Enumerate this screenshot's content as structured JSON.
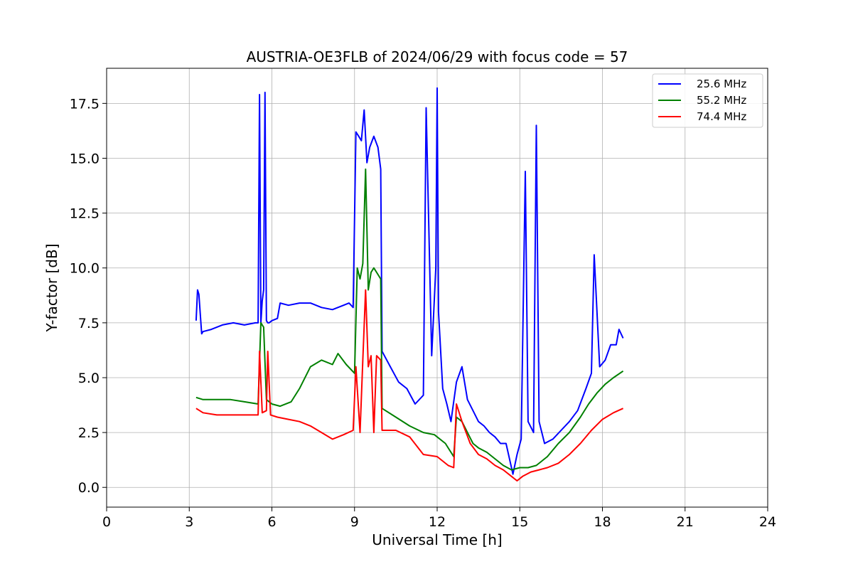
{
  "chart_data": {
    "type": "line",
    "title": "AUSTRIA-OE3FLB of 2024/06/29 with focus code = 57",
    "xlabel": "Universal Time [h]",
    "ylabel": "Y-factor [dB]",
    "xlim": [
      0,
      24
    ],
    "ylim": [
      -0.9,
      19.1
    ],
    "xticks": [
      0,
      3,
      6,
      9,
      12,
      15,
      18,
      21,
      24
    ],
    "yticks": [
      0.0,
      2.5,
      5.0,
      7.5,
      10.0,
      12.5,
      15.0,
      17.5
    ],
    "ytick_labels": [
      "0.0",
      "2.5",
      "5.0",
      "7.5",
      "10.0",
      "12.5",
      "15.0",
      "17.5"
    ],
    "grid": true,
    "legend_position": "top-right",
    "series": [
      {
        "name": "25.6 MHz",
        "color": "#0000ff",
        "x": [
          3.25,
          3.3,
          3.35,
          3.45,
          3.5,
          3.8,
          4.2,
          4.6,
          5.0,
          5.4,
          5.5,
          5.55,
          5.6,
          5.65,
          5.7,
          5.75,
          5.8,
          5.85,
          5.9,
          6.0,
          6.2,
          6.3,
          6.6,
          7.0,
          7.4,
          7.8,
          8.2,
          8.6,
          8.8,
          8.95,
          9.05,
          9.15,
          9.25,
          9.35,
          9.45,
          9.55,
          9.7,
          9.85,
          9.95,
          10.0,
          10.3,
          10.6,
          10.9,
          11.2,
          11.5,
          11.6,
          11.8,
          11.95,
          12.0,
          12.05,
          12.2,
          12.35,
          12.5,
          12.7,
          12.9,
          13.1,
          13.3,
          13.5,
          13.7,
          13.9,
          14.1,
          14.3,
          14.5,
          14.75,
          14.9,
          15.05,
          15.2,
          15.3,
          15.5,
          15.6,
          15.7,
          15.9,
          16.2,
          16.5,
          16.8,
          17.1,
          17.4,
          17.6,
          17.7,
          17.9,
          18.1,
          18.3,
          18.5,
          18.6,
          18.75
        ],
        "y": [
          7.6,
          9.0,
          8.8,
          7.0,
          7.1,
          7.2,
          7.4,
          7.5,
          7.4,
          7.5,
          7.5,
          17.9,
          7.5,
          8.5,
          9.0,
          18.0,
          7.6,
          7.5,
          7.5,
          7.6,
          7.7,
          8.4,
          8.3,
          8.4,
          8.4,
          8.2,
          8.1,
          8.3,
          8.4,
          8.2,
          16.2,
          16.0,
          15.8,
          17.2,
          14.8,
          15.5,
          16.0,
          15.5,
          14.5,
          6.2,
          5.5,
          4.8,
          4.5,
          3.8,
          4.2,
          17.3,
          6.0,
          10.0,
          18.2,
          8.0,
          4.5,
          3.8,
          3.0,
          4.8,
          5.5,
          4.0,
          3.5,
          3.0,
          2.8,
          2.5,
          2.3,
          2.0,
          2.0,
          0.6,
          1.5,
          2.2,
          14.4,
          3.0,
          2.5,
          16.5,
          3.0,
          2.0,
          2.2,
          2.6,
          3.0,
          3.5,
          4.5,
          5.2,
          10.6,
          5.5,
          5.8,
          6.5,
          6.5,
          7.2,
          6.8
        ]
      },
      {
        "name": "55.2 MHz",
        "color": "#008000",
        "x": [
          3.25,
          3.5,
          4.0,
          4.5,
          5.0,
          5.5,
          5.6,
          5.7,
          5.8,
          6.0,
          6.3,
          6.7,
          7.0,
          7.4,
          7.8,
          8.2,
          8.4,
          8.7,
          9.0,
          9.1,
          9.2,
          9.3,
          9.4,
          9.5,
          9.6,
          9.7,
          9.8,
          9.95,
          10.0,
          10.5,
          11.0,
          11.5,
          11.9,
          12.3,
          12.5,
          12.6,
          12.7,
          12.9,
          13.1,
          13.3,
          13.5,
          13.8,
          14.1,
          14.4,
          14.7,
          15.0,
          15.3,
          15.6,
          16.0,
          16.4,
          16.8,
          17.2,
          17.5,
          17.8,
          18.1,
          18.4,
          18.75
        ],
        "y": [
          4.1,
          4.0,
          4.0,
          4.0,
          3.9,
          3.8,
          7.5,
          7.3,
          4.0,
          3.8,
          3.7,
          3.9,
          4.5,
          5.5,
          5.8,
          5.6,
          6.1,
          5.6,
          5.2,
          10.0,
          9.5,
          10.2,
          14.5,
          9.0,
          9.8,
          10.0,
          9.8,
          9.5,
          3.6,
          3.2,
          2.8,
          2.5,
          2.4,
          2.0,
          1.6,
          1.4,
          3.2,
          3.0,
          2.5,
          2.0,
          1.8,
          1.6,
          1.3,
          1.0,
          0.8,
          0.9,
          0.9,
          1.0,
          1.4,
          2.0,
          2.5,
          3.2,
          3.8,
          4.3,
          4.7,
          5.0,
          5.3
        ]
      },
      {
        "name": "74.4 MHz",
        "color": "#ff0000",
        "x": [
          3.25,
          3.5,
          4.0,
          4.5,
          5.0,
          5.5,
          5.55,
          5.65,
          5.8,
          5.85,
          5.95,
          6.2,
          6.6,
          7.0,
          7.4,
          7.8,
          8.2,
          8.6,
          8.95,
          9.05,
          9.2,
          9.3,
          9.4,
          9.5,
          9.6,
          9.7,
          9.8,
          9.95,
          10.0,
          10.5,
          11.0,
          11.5,
          12.0,
          12.4,
          12.6,
          12.7,
          12.9,
          13.2,
          13.5,
          13.8,
          14.1,
          14.4,
          14.7,
          14.9,
          15.1,
          15.4,
          15.7,
          16.0,
          16.4,
          16.8,
          17.2,
          17.6,
          18.0,
          18.4,
          18.75
        ],
        "y": [
          3.6,
          3.4,
          3.3,
          3.3,
          3.3,
          3.3,
          6.2,
          3.4,
          3.5,
          6.2,
          3.3,
          3.2,
          3.1,
          3.0,
          2.8,
          2.5,
          2.2,
          2.4,
          2.6,
          5.5,
          2.5,
          5.8,
          9.0,
          5.5,
          6.0,
          2.5,
          6.0,
          5.8,
          2.6,
          2.6,
          2.3,
          1.5,
          1.4,
          1.0,
          0.9,
          3.8,
          3.0,
          2.0,
          1.5,
          1.3,
          1.0,
          0.8,
          0.5,
          0.3,
          0.5,
          0.7,
          0.8,
          0.9,
          1.1,
          1.5,
          2.0,
          2.6,
          3.1,
          3.4,
          3.6
        ]
      }
    ]
  }
}
